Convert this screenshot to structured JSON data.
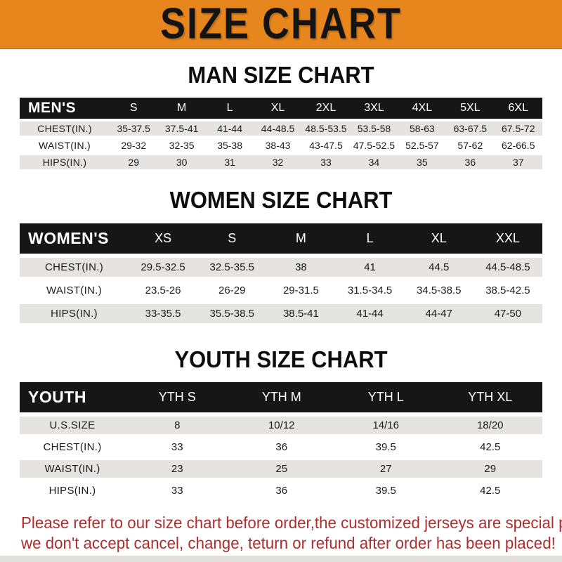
{
  "banner": {
    "title": "SIZE CHART"
  },
  "colors": {
    "banner_orange": "#E8861E",
    "header_black": "#161616",
    "row_gray": "#E6E4E2",
    "footer_red": "#AC2F2F"
  },
  "sections": {
    "men": {
      "heading": "MAN SIZE CHART",
      "corner_label": "MEN'S",
      "columns": [
        "S",
        "M",
        "L",
        "XL",
        "2XL",
        "3XL",
        "4XL",
        "5XL",
        "6XL"
      ],
      "rows": [
        {
          "label": "CHEST(IN.)",
          "values": [
            "35-37.5",
            "37.5-41",
            "41-44",
            "44-48.5",
            "48.5-53.5",
            "53.5-58",
            "58-63",
            "63-67.5",
            "67.5-72"
          ]
        },
        {
          "label": "WAIST(IN.)",
          "values": [
            "29-32",
            "32-35",
            "35-38",
            "38-43",
            "43-47.5",
            "47.5-52.5",
            "52.5-57",
            "57-62",
            "62-66.5"
          ]
        },
        {
          "label": "HIPS(IN.)",
          "values": [
            "29",
            "30",
            "31",
            "32",
            "33",
            "34",
            "35",
            "36",
            "37"
          ]
        }
      ]
    },
    "women": {
      "heading": "WOMEN SIZE CHART",
      "corner_label": "WOMEN'S",
      "columns": [
        "XS",
        "S",
        "M",
        "L",
        "XL",
        "XXL"
      ],
      "rows": [
        {
          "label": "CHEST(IN.)",
          "values": [
            "29.5-32.5",
            "32.5-35.5",
            "38",
            "41",
            "44.5",
            "44.5-48.5"
          ]
        },
        {
          "label": "WAIST(IN.)",
          "values": [
            "23.5-26",
            "26-29",
            "29-31.5",
            "31.5-34.5",
            "34.5-38.5",
            "38.5-42.5"
          ]
        },
        {
          "label": "HIPS(IN.)",
          "values": [
            "33-35.5",
            "35.5-38.5",
            "38.5-41",
            "41-44",
            "44-47",
            "47-50"
          ]
        }
      ]
    },
    "youth": {
      "heading": "YOUTH SIZE CHART",
      "corner_label": "YOUTH",
      "columns": [
        "YTH S",
        "YTH M",
        "YTH L",
        "YTH XL"
      ],
      "rows": [
        {
          "label": "U.S.SIZE",
          "values": [
            "8",
            "10/12",
            "14/16",
            "18/20"
          ]
        },
        {
          "label": "CHEST(IN.)",
          "values": [
            "33",
            "36",
            "39.5",
            "42.5"
          ]
        },
        {
          "label": "WAIST(IN.)",
          "values": [
            "23",
            "25",
            "27",
            "29"
          ]
        },
        {
          "label": "HIPS(IN.)",
          "values": [
            "33",
            "36",
            "39.5",
            "42.5"
          ]
        }
      ]
    }
  },
  "footer": {
    "line1": "Please refer to our size chart before order,the customized jerseys are special products,",
    "line2": "we don't accept cancel, change, teturn or refund after order has been placed!"
  }
}
